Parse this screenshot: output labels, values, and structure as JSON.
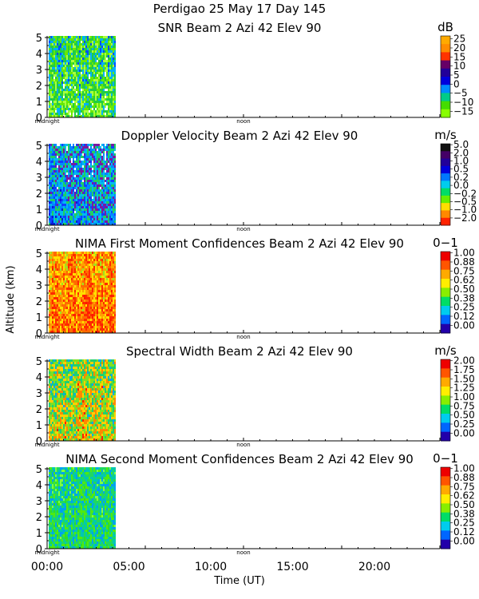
{
  "header": {
    "title": "Perdigao  25 May 17 Day 145"
  },
  "shared_axes": {
    "ylabel": "Altitude (km)",
    "xlabel": "Time (UT)",
    "ylim": [
      0,
      5.1
    ],
    "yticks": [
      0,
      1,
      2,
      3,
      4,
      5
    ],
    "xlim_hours": [
      0,
      24
    ],
    "xticks": [
      "00:00",
      "05:00",
      "10:00",
      "15:00",
      "20:00"
    ],
    "inner_ticks": [
      "midnight",
      "noon"
    ],
    "data_coverage_hours": [
      0,
      4.15
    ]
  },
  "chart_data": [
    {
      "type": "heatmap",
      "title": "SNR Beam 2 Azi  42 Elev 90",
      "unit": "dB",
      "colorbar_labels": [
        "25",
        "20",
        "15",
        "10",
        "5",
        "0",
        "−5",
        "−10",
        "−15"
      ],
      "colorbar_colors": [
        "#ffaa00",
        "#ff8c00",
        "#ff3300",
        "#660066",
        "#220099",
        "#0000dd",
        "#008cff",
        "#00cc88",
        "#44dd00",
        "#88ff00"
      ],
      "palette": [
        "#ffffff",
        "#a8ff40",
        "#66e800",
        "#22cc44",
        "#00b0ff",
        "#0050ff",
        "#1010c0"
      ]
    },
    {
      "type": "heatmap",
      "title": "Doppler Velocity Beam 2 Azi  42 Elev 90",
      "unit": "m/s",
      "colorbar_labels": [
        "5.0",
        "2.0",
        "1.0",
        "0.5",
        "0.2",
        "0.0",
        "−0.2",
        "−0.5",
        "−1.0",
        "−2.0"
      ],
      "colorbar_colors": [
        "#111111",
        "#440066",
        "#220099",
        "#0000dd",
        "#0077ff",
        "#00ccee",
        "#00dd66",
        "#66ee00",
        "#ffdd00",
        "#ff8800",
        "#ff2200"
      ],
      "palette": [
        "#0a1ad8",
        "#1040ff",
        "#0088ff",
        "#00bbee",
        "#20d060",
        "#7a1aa0",
        "#ffffff",
        "#e04000"
      ]
    },
    {
      "type": "heatmap",
      "title": "NIMA First Moment Confidences Beam 2 Azi  42 Elev 90",
      "unit": "0−1",
      "colorbar_labels": [
        "1.00",
        "0.88",
        "0.75",
        "0.62",
        "0.50",
        "0.38",
        "0.25",
        "0.12",
        "0.00"
      ],
      "colorbar_colors": [
        "#ee0000",
        "#ff5500",
        "#ffaa00",
        "#ffee00",
        "#88ee00",
        "#00dd66",
        "#00ccee",
        "#0066ff",
        "#2200aa"
      ],
      "palette": [
        "#ff1a00",
        "#ff2a00",
        "#ff6a00",
        "#ffa000",
        "#ffe000",
        "#a0e020",
        "#ffffff"
      ]
    },
    {
      "type": "heatmap",
      "title": "Spectral Width Beam 2 Azi  42 Elev 90",
      "unit": "m/s",
      "colorbar_labels": [
        "2.00",
        "1.75",
        "1.50",
        "1.25",
        "1.00",
        "0.75",
        "0.50",
        "0.25",
        "0.00"
      ],
      "colorbar_colors": [
        "#ee0000",
        "#ff5500",
        "#ffaa00",
        "#ffee00",
        "#88ee00",
        "#00dd66",
        "#00ccee",
        "#0066ff",
        "#2200aa"
      ],
      "palette": [
        "#ff2000",
        "#ff8800",
        "#ffd000",
        "#80e020",
        "#20d070",
        "#00a8f0",
        "#ffffff"
      ]
    },
    {
      "type": "heatmap",
      "title": "NIMA Second Moment Confidences Beam 2 Azi  42 Elev 90",
      "unit": "0−1",
      "colorbar_labels": [
        "1.00",
        "0.88",
        "0.75",
        "0.62",
        "0.50",
        "0.38",
        "0.25",
        "0.12",
        "0.00"
      ],
      "colorbar_colors": [
        "#ee0000",
        "#ff5500",
        "#ffaa00",
        "#ffee00",
        "#88ee00",
        "#00dd66",
        "#00ccee",
        "#0066ff",
        "#2200aa"
      ],
      "palette": [
        "#30e020",
        "#50ea10",
        "#20d860",
        "#00c8b0",
        "#00a0f0",
        "#80ff40",
        "#ffffff"
      ]
    }
  ]
}
